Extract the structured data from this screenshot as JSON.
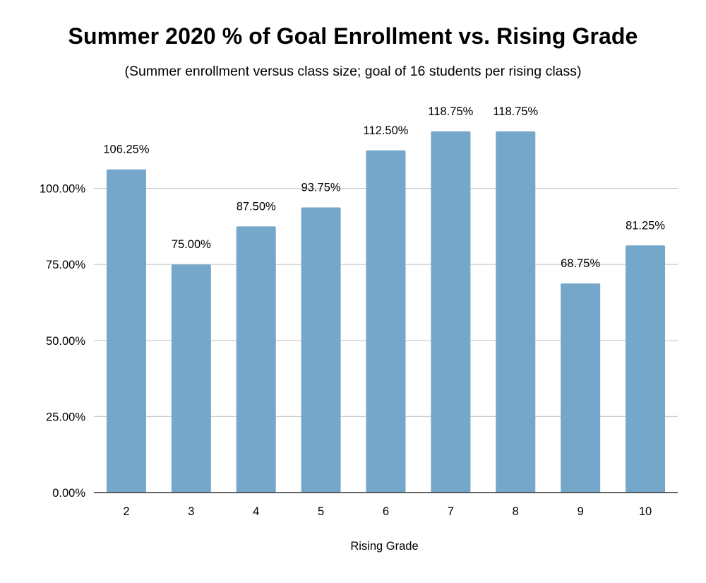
{
  "chart_data": {
    "type": "bar",
    "title": "Summer 2020 % of Goal Enrollment vs. Rising Grade",
    "subtitle": "(Summer enrollment versus class size; goal of 16 students per rising class)",
    "xlabel": "Rising Grade",
    "ylabel": "",
    "categories": [
      "2",
      "3",
      "4",
      "5",
      "6",
      "7",
      "8",
      "9",
      "10"
    ],
    "values": [
      106.25,
      75.0,
      87.5,
      93.75,
      112.5,
      118.75,
      118.75,
      68.75,
      81.25
    ],
    "data_labels": [
      "106.25%",
      "75.00%",
      "87.50%",
      "93.75%",
      "112.50%",
      "118.75%",
      "118.75%",
      "68.75%",
      "81.25%"
    ],
    "yticks": [
      0,
      25,
      50,
      75,
      100
    ],
    "ytick_labels": [
      "0.00%",
      "25.00%",
      "50.00%",
      "75.00%",
      "100.00%"
    ],
    "ylim": [
      0,
      125
    ],
    "grid": true,
    "legend": "none",
    "bar_color": "#74a7c9",
    "gridline_color": "#cccccc",
    "axis_color": "#333333"
  }
}
